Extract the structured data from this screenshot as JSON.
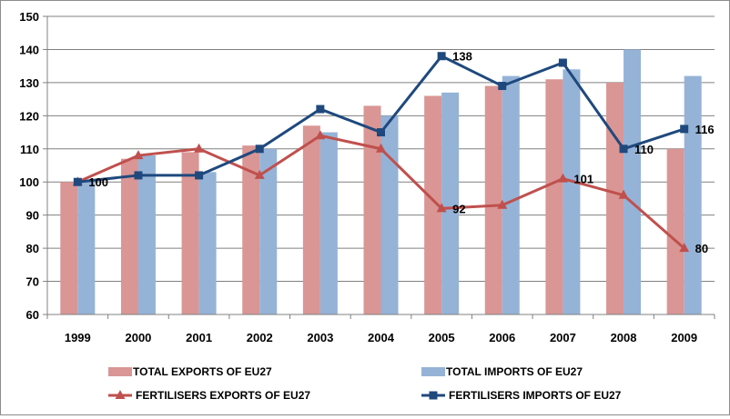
{
  "chart_data": {
    "type": "bar",
    "title": "",
    "xlabel": "",
    "ylabel": "",
    "ylim": [
      60,
      150
    ],
    "yticks": [
      60,
      70,
      80,
      90,
      100,
      110,
      120,
      130,
      140,
      150
    ],
    "grid": true,
    "legend_position": "bottom",
    "categories": [
      "1999",
      "2000",
      "2001",
      "2002",
      "2003",
      "2004",
      "2005",
      "2006",
      "2007",
      "2008",
      "2009"
    ],
    "series": [
      {
        "name": "TOTAL EXPORTS OF EU27",
        "kind": "bar",
        "color": "#d99694",
        "values": [
          100,
          107,
          109,
          111,
          117,
          123,
          126,
          129,
          131,
          130,
          110
        ]
      },
      {
        "name": "TOTAL IMPORTS OF EU27",
        "kind": "bar",
        "color": "#95b3d7",
        "values": [
          100,
          108,
          103,
          110,
          115,
          120,
          127,
          132,
          134,
          140,
          132
        ]
      },
      {
        "name": "FERTILISERS EXPORTS OF EU27",
        "kind": "line",
        "marker": "triangle",
        "color": "#c0504d",
        "values": [
          100,
          108,
          110,
          102,
          114,
          110,
          92,
          93,
          101,
          96,
          80
        ]
      },
      {
        "name": "FERTILISERS IMPORTS OF EU27",
        "kind": "line",
        "marker": "square",
        "color": "#1f497d",
        "values": [
          100,
          102,
          102,
          110,
          122,
          115,
          138,
          129,
          136,
          110,
          116
        ]
      }
    ],
    "annotations": [
      {
        "series": 3,
        "index": 0,
        "text": "100"
      },
      {
        "series": 2,
        "index": 6,
        "text": "92"
      },
      {
        "series": 3,
        "index": 6,
        "text": "138"
      },
      {
        "series": 2,
        "index": 8,
        "text": "101"
      },
      {
        "series": 3,
        "index": 9,
        "text": "110"
      },
      {
        "series": 2,
        "index": 10,
        "text": "80"
      },
      {
        "series": 3,
        "index": 10,
        "text": "116"
      }
    ]
  }
}
